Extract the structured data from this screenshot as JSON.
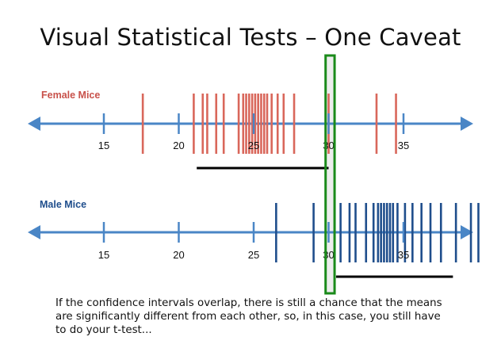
{
  "slide": {
    "title": "Visual Statistical Tests – One Caveat",
    "caption": "If the confidence intervals overlap, there is still a chance that the means are significantly different from each other, so, in this case, you still have to do your t-test..."
  },
  "colors": {
    "axis": "#4a86c6",
    "female": "#d9675b",
    "male": "#1f4e8c",
    "ci_bar": "#000000",
    "highlight_border": "#1a8a1a",
    "highlight_fill": "#e6e6e6"
  },
  "panels": [
    {
      "label": "Female Mice",
      "label_color": "#c8514a",
      "ticks": [
        {
          "value": 15,
          "label": "15"
        },
        {
          "value": 20,
          "label": "20"
        },
        {
          "value": 25,
          "label": "25"
        },
        {
          "value": 30,
          "label": "30"
        },
        {
          "value": 35,
          "label": "35"
        }
      ],
      "observations": [
        17.6,
        21.0,
        21.6,
        21.9,
        22.5,
        23.0,
        24.0,
        24.3,
        24.5,
        24.7,
        24.9,
        25.1,
        25.3,
        25.5,
        25.7,
        25.9,
        26.2,
        26.6,
        27.0,
        27.7,
        30.0,
        33.2,
        34.5
      ],
      "ci": [
        21.2,
        30.0
      ]
    },
    {
      "label": "Male Mice",
      "label_color": "#1f4e8c",
      "ticks": [
        {
          "value": 15,
          "label": "15"
        },
        {
          "value": 20,
          "label": "20"
        },
        {
          "value": 25,
          "label": "25"
        },
        {
          "value": 30,
          "label": "30"
        },
        {
          "value": 35,
          "label": "35"
        }
      ],
      "observations": [
        26.5,
        29.0,
        30.8,
        31.4,
        31.8,
        32.5,
        33.0,
        33.3,
        33.5,
        33.7,
        33.9,
        34.1,
        34.3,
        34.6,
        35.1,
        35.6,
        36.2,
        36.8,
        37.5,
        38.5,
        39.5,
        40.0
      ],
      "ci": [
        30.5,
        38.3
      ]
    }
  ],
  "highlight": {
    "min": 29.8,
    "max": 30.4
  }
}
